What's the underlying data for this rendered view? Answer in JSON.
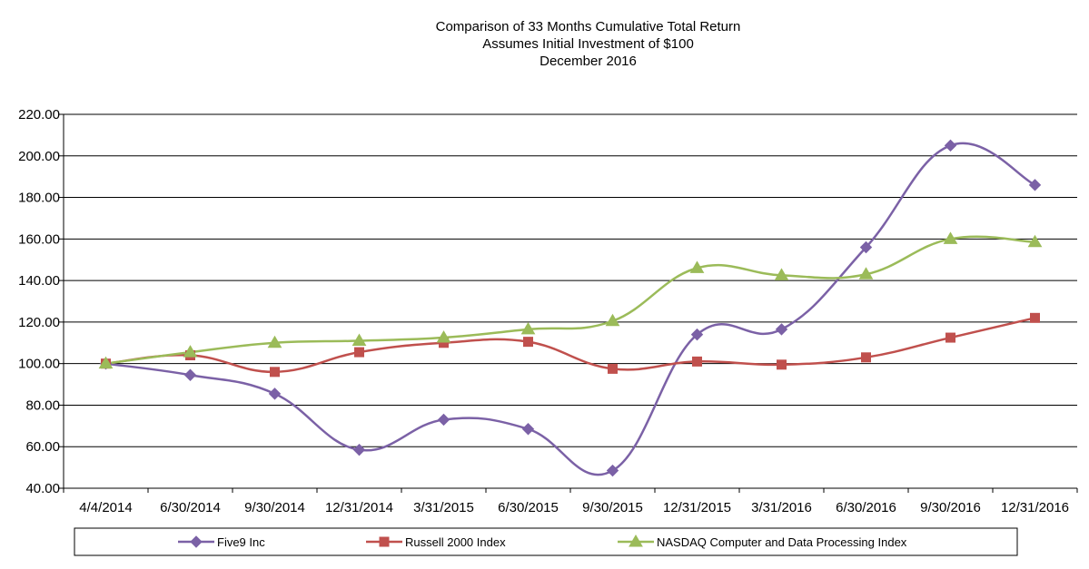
{
  "chart_data": {
    "type": "line",
    "title": [
      "Comparison of 33 Months Cumulative Total Return",
      "Assumes Initial Investment of $100",
      "December 2016"
    ],
    "categories": [
      "4/4/2014",
      "6/30/2014",
      "9/30/2014",
      "12/31/2014",
      "3/31/2015",
      "6/30/2015",
      "9/30/2015",
      "12/31/2015",
      "3/31/2016",
      "6/30/2016",
      "9/30/2016",
      "12/31/2016"
    ],
    "ylim": [
      40,
      220
    ],
    "yticks": [
      "40.00",
      "60.00",
      "80.00",
      "100.00",
      "120.00",
      "140.00",
      "160.00",
      "180.00",
      "200.00",
      "220.00"
    ],
    "grid": true,
    "legend_position": "bottom",
    "series": [
      {
        "name": "Five9 Inc",
        "color": "#7b61a6",
        "marker": "diamond",
        "values": [
          100.0,
          94.5,
          85.5,
          58.5,
          73.0,
          68.5,
          48.5,
          114.0,
          116.5,
          156.0,
          205.0,
          186.0
        ]
      },
      {
        "name": "Russell 2000 Index",
        "color": "#c0504d",
        "marker": "square",
        "values": [
          100.0,
          104.0,
          96.0,
          105.5,
          110.0,
          110.5,
          97.5,
          101.0,
          99.5,
          103.0,
          112.5,
          122.0
        ]
      },
      {
        "name": "NASDAQ Computer and Data Processing Index",
        "color": "#9bbb59",
        "marker": "triangle",
        "values": [
          100.0,
          105.5,
          110.0,
          111.0,
          112.5,
          116.5,
          120.5,
          146.0,
          142.5,
          143.0,
          160.0,
          158.5
        ]
      }
    ]
  }
}
